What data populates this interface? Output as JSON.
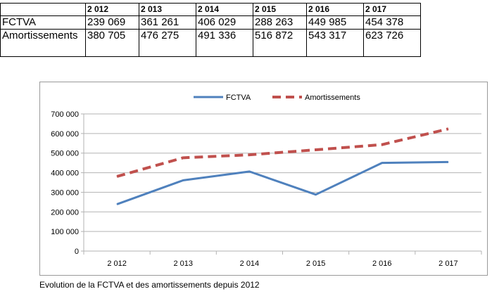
{
  "table": {
    "years": [
      "2 012",
      "2 013",
      "2 014",
      "2 015",
      "2 016",
      "2 017"
    ],
    "rows": [
      {
        "label": "FCTVA",
        "values": [
          "239 069",
          "361 261",
          "406 029",
          "288 263",
          "449 985",
          "454 378"
        ]
      },
      {
        "label": "Amortissements",
        "values": [
          "380 705",
          "476 275",
          "491 336",
          "516 872",
          "543 317",
          "623 726"
        ]
      }
    ]
  },
  "chart_data": {
    "type": "line",
    "categories": [
      "2 012",
      "2 013",
      "2 014",
      "2 015",
      "2 016",
      "2 017"
    ],
    "series": [
      {
        "name": "FCTVA",
        "values": [
          239069,
          361261,
          406029,
          288263,
          449985,
          454378
        ],
        "color": "#4f81bd",
        "style": "solid"
      },
      {
        "name": "Amortissements",
        "values": [
          380705,
          476275,
          491336,
          516872,
          543317,
          623726
        ],
        "color": "#c0504d",
        "style": "dashed"
      }
    ],
    "yticks": [
      "0",
      "100 000",
      "200 000",
      "300 000",
      "400 000",
      "500 000",
      "600 000",
      "700 000"
    ],
    "ylim": [
      0,
      700000
    ],
    "grid": true,
    "legend": "top-center"
  },
  "caption": "Evolution de la FCTVA et des amortissements depuis 2012"
}
